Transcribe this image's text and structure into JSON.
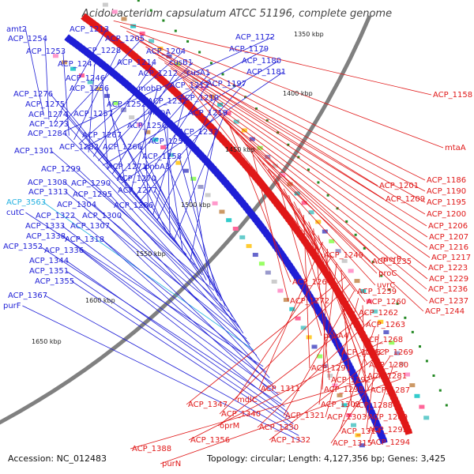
{
  "title": "Acidobacterium capsulatum ATCC 51196, complete genome",
  "footer": {
    "accession": "Accession: NC_012483",
    "topology": "Topology: circular; Length: 4,127,356 bp; Genes: 3,425"
  },
  "colors": {
    "forward": "#1f1fd6",
    "reverse": "#e01818",
    "highlight": "#22b0e0",
    "backbone": "#808080"
  },
  "kbp_ticks": [
    "1350 kbp",
    "1400 kbp",
    "1450 kbp",
    "1500 kbp",
    "1550 kbp",
    "1600 kbp",
    "1650 kbp"
  ],
  "labels_forward": [
    "amt2",
    "ACP_1254",
    "ACP_1213",
    "ACP_1205",
    "ACP_1172",
    "ACP_1253",
    "ACP_1228",
    "ACP_1204",
    "ACP_1179",
    "ACP_1247",
    "ACP_1214",
    "cusB1",
    "ACP_1180",
    "ACP_1246",
    "ACP_1212",
    "cusA1",
    "ACP_1181",
    "ACP_1256",
    "mobD",
    "ACP_1211",
    "ACP_1197",
    "ACP_1276",
    "ACP_1252",
    "ACP_1232",
    "ACP_1210",
    "ACP_1275",
    "ACP_1257",
    "ompA",
    "ACP_1219",
    "ACP_1274",
    "ACP_1250",
    "ACP_1273",
    "ACP_1233",
    "ACP_1284",
    "ACP_1267",
    "ACP_1282",
    "ACP_1266",
    "ACP_1251",
    "ACP_1301",
    "ACP_1258",
    "ACP_1271",
    "pnbA3",
    "ACP_1299",
    "ACP_1270",
    "ACP_1308",
    "ACP_1290",
    "ACP_1277",
    "ACP_1313",
    "ACP_1295",
    "ACP_3563",
    "ACP_1304",
    "ACP_1286",
    "cutC",
    "ACP_1322",
    "ACP_1300",
    "ACP_1333",
    "ACP_1307",
    "ACP_1338",
    "ACP_1318",
    "ACP_1352",
    "ACP_1336",
    "ACP_1344",
    "ACP_1351",
    "ACP_1355",
    "ACP_1367",
    "purF"
  ],
  "labels_reverse": [
    "ACP_1158",
    "mtaA",
    "ACP_1186",
    "ACP_1201",
    "ACP_1190",
    "ACP_1209",
    "ACP_1195",
    "ACP_1200",
    "ACP_1206",
    "ACP_1207",
    "ACP_1216",
    "ACP_1249",
    "merP",
    "ACP_1217",
    "ACP_1235",
    "ACP_1223",
    "proC",
    "ACP_1229",
    "uvrC",
    "ACP_1264",
    "ACP_1236",
    "ACP_1259",
    "ACP_1237",
    "ACP_1272",
    "ACP_1260",
    "ACP_1244",
    "ACP_1262",
    "ACP_1263",
    "pnbA4",
    "ACP_1268",
    "ACP_1285",
    "ACP_1269",
    "ACP_1280",
    "ACP_1291",
    "ACP_1281",
    "ACP_1292",
    "ACP_1287",
    "ACP_1311",
    "ACP_1298",
    "mdlC",
    "ACP_1302",
    "ACP_1288",
    "ACP_1347",
    "ACP_1340",
    "ACP_1321",
    "ACP_1303",
    "ACP_1289",
    "oprM",
    "ACP_1330",
    "ACP_1314",
    "ACP_1293",
    "ACP_1356",
    "ACP_1332",
    "ACP_1315",
    "ACP_1294",
    "ACP_1388",
    "purN"
  ]
}
